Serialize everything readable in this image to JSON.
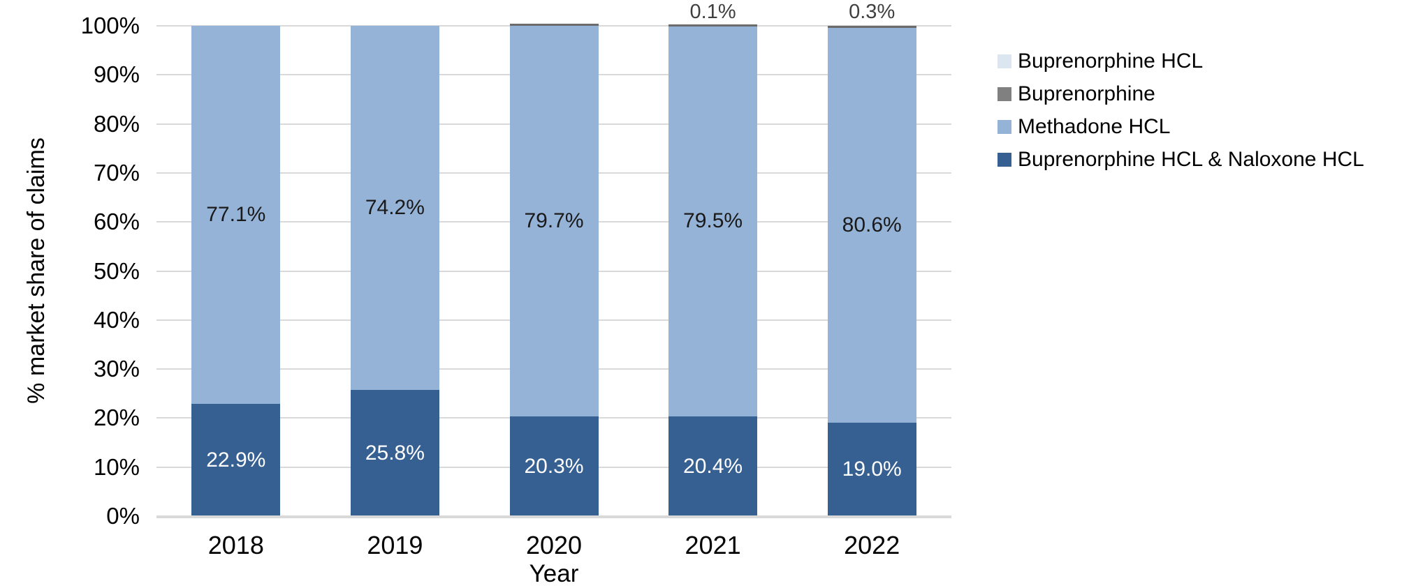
{
  "chart_data": {
    "type": "bar",
    "variant": "stacked-column-100",
    "title": "",
    "xlabel": "Year",
    "ylabel": "% market share of claims",
    "categories": [
      "2018",
      "2019",
      "2020",
      "2021",
      "2022"
    ],
    "series": [
      {
        "name": "Buprenorphine HCL & Naloxone HCL",
        "color": "#376092",
        "values": [
          22.9,
          25.8,
          20.3,
          20.4,
          19.0
        ],
        "data_labels": [
          "22.9%",
          "25.8%",
          "20.3%",
          "20.4%",
          "19.0%"
        ],
        "label_color": "#ffffff",
        "label_position": "inside"
      },
      {
        "name": "Methadone HCL",
        "color": "#95b3d7",
        "values": [
          77.1,
          74.2,
          79.7,
          79.5,
          80.6
        ],
        "data_labels": [
          "77.1%",
          "74.2%",
          "79.7%",
          "79.5%",
          "80.6%"
        ],
        "label_color": "#1a1a1a",
        "label_position": "inside"
      },
      {
        "name": "Buprenorphine",
        "color": "#6b6b6b",
        "values": [
          0,
          0,
          0.05,
          0.1,
          0.3
        ],
        "data_labels": [
          "",
          "",
          "",
          "0.1%",
          "0.3%"
        ],
        "label_color": "#3f3f3f",
        "label_position": "outside-top"
      },
      {
        "name": "Buprenorphine HCL",
        "color": "#dce6f1",
        "values": [
          0,
          0,
          0,
          0,
          0
        ],
        "data_labels": [
          "",
          "",
          "",
          "",
          ""
        ],
        "label_color": "#3f3f3f",
        "label_position": "inside"
      }
    ],
    "stack_order": "bottom-to-top",
    "legend": {
      "position": "right",
      "items": [
        {
          "label": "Buprenorphine HCL",
          "swatch_color": "#dce6f1"
        },
        {
          "label": "Buprenorphine",
          "swatch_color": "#808080"
        },
        {
          "label": "Methadone HCL",
          "swatch_color": "#95b3d7"
        },
        {
          "label": "Buprenorphine HCL & Naloxone HCL",
          "swatch_color": "#376092"
        }
      ]
    },
    "y_axis": {
      "ticks": [
        "0%",
        "10%",
        "20%",
        "30%",
        "40%",
        "50%",
        "60%",
        "70%",
        "80%",
        "90%",
        "100%"
      ],
      "min": 0,
      "max": 100,
      "gridlines": true,
      "gridline_color": "#d9d9d9"
    },
    "x_axis": {
      "ticks": [
        "2018",
        "2019",
        "2020",
        "2021",
        "2022"
      ]
    }
  }
}
